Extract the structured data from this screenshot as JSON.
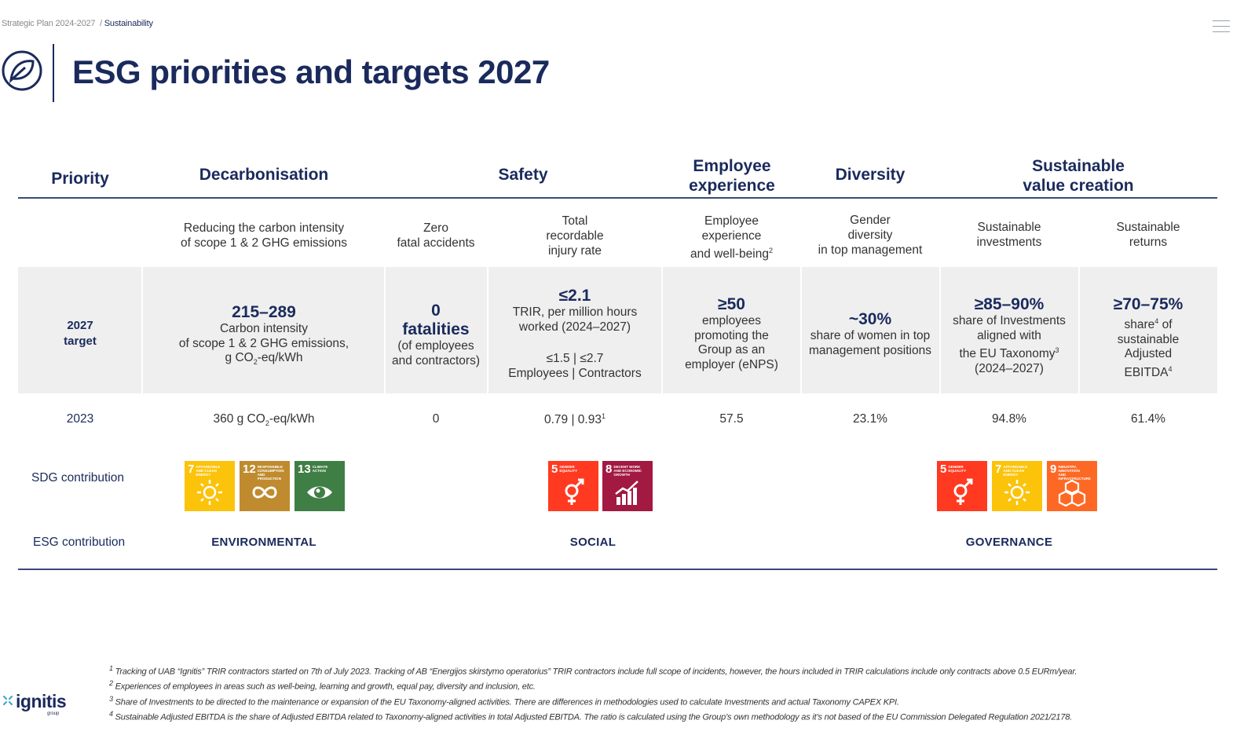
{
  "breadcrumb": {
    "parent": "Strategic Plan 2024-2027",
    "current": "Sustainability"
  },
  "title": "ESG priorities and targets 2027",
  "header": {
    "priority": "Priority",
    "decarbonisation": "Decarbonisation",
    "safety": "Safety",
    "employee_experience": [
      "Employee",
      "experience"
    ],
    "diversity": "Diversity",
    "sustainable_value": [
      "Sustainable",
      "value creation"
    ]
  },
  "subheaders": {
    "carbon": [
      "Reducing the carbon intensity",
      "of scope 1 & 2 GHG emissions"
    ],
    "zero": [
      "Zero",
      "fatal accidents"
    ],
    "trir": [
      "Total",
      "recordable",
      "injury rate"
    ],
    "employee": [
      "Employee",
      "experience",
      "and well-being"
    ],
    "employee_sup": "2",
    "gender": [
      "Gender",
      "diversity",
      "in top management"
    ],
    "investments": [
      "Sustainable",
      "investments"
    ],
    "returns": [
      "Sustainable",
      "returns"
    ]
  },
  "target_label": [
    "2027",
    "target"
  ],
  "targets": {
    "carbon": {
      "big": "215–289",
      "l1": "Carbon intensity",
      "l2": "of scope 1 & 2 GHG emissions,",
      "l3a": "g CO",
      "l3sub": "2",
      "l3b": "-eq/kWh"
    },
    "fatalities": {
      "big1": "0",
      "big2": "fatalities",
      "l1": "(of employees",
      "l2": "and contractors)"
    },
    "trir": {
      "big": "≤2.1",
      "l1": "TRIR, per million hours",
      "l2": "worked (2024–2027)",
      "l3": "≤1.5 | ≤2.7",
      "l4": "Employees | Contractors"
    },
    "enps": {
      "big": "≥50",
      "l1": "employees",
      "l2": "promoting the",
      "l3": "Group as an",
      "l4": "employer (eNPS)"
    },
    "women": {
      "big": "~30%",
      "l1": "share of women in top",
      "l2": "management positions"
    },
    "investments": {
      "big": "≥85–90%",
      "l1": "share of Investments",
      "l2": "aligned with",
      "l3a": "the EU Taxonomy",
      "l3sup": "3",
      "l4": "(2024–2027)"
    },
    "returns": {
      "big": "≥70–75%",
      "l1a": "share",
      "l1sup": "4",
      "l1b": " of",
      "l2": "sustainable",
      "l3": "Adjusted",
      "l4a": "EBITDA",
      "l4sup": "4"
    }
  },
  "year2023": {
    "label": "2023",
    "carbon_a": "360 g CO",
    "carbon_sub": "2",
    "carbon_b": "-eq/kWh",
    "fatal": "0",
    "trir": "0.79 | 0.93",
    "trir_sup": "1",
    "enps": "57.5",
    "women": "23.1%",
    "investments": "94.8%",
    "returns": "61.4%"
  },
  "sdg": {
    "label": "SDG contribution",
    "goals": [
      {
        "num": "7",
        "text": "Affordable and clean energy",
        "color": "#FCC30B",
        "icon": "sun-icon"
      },
      {
        "num": "12",
        "text": "Responsible consumption and production",
        "color": "#BF8B2E",
        "icon": "infinity-icon"
      },
      {
        "num": "13",
        "text": "Climate action",
        "color": "#3F7E44",
        "icon": "eye-globe-icon"
      },
      {
        "num": "5",
        "text": "Gender equality",
        "color": "#FF3A21",
        "icon": "gender-icon"
      },
      {
        "num": "8",
        "text": "Decent work and economic growth",
        "color": "#A21942",
        "icon": "growth-chart-icon"
      },
      {
        "num": "5",
        "text": "Gender equality",
        "color": "#FF3A21",
        "icon": "gender-icon"
      },
      {
        "num": "7",
        "text": "Affordable and clean energy",
        "color": "#FCC30B",
        "icon": "sun-icon"
      },
      {
        "num": "9",
        "text": "Industry, innovation and infrastructure",
        "color": "#FD6925",
        "icon": "cubes-icon"
      }
    ]
  },
  "esg": {
    "label": "ESG contribution",
    "environmental": "ENVIRONMENTAL",
    "social": "SOCIAL",
    "governance": "GOVERNANCE"
  },
  "footnotes": {
    "n1": "Tracking of UAB “Ignitis” TRIR contractors started on 7th of July 2023. Tracking of AB “Energijos skirstymo operatorius” TRIR contractors include full scope of incidents, however, the hours included in TRIR calculations include only contracts above 0.5 EURm/year.",
    "n2": "Experiences of employees in areas such as well-being, learning and growth, equal pay, diversity and inclusion, etc.",
    "n3": "Share of Investments to be directed to the maintenance or expansion of the EU Taxonomy-aligned activities. There are differences in methodologies used to calculate Investments and actual Taxonomy CAPEX KPI.",
    "n4": "Sustainable Adjusted EBITDA is the share of Adjusted EBITDA related to Taxonomy-aligned activities in total Adjusted EBITDA. The ratio is calculated using the Group’s own methodology as it’s not based of the EU Commission Delegated Regulation 2021/2178."
  },
  "logo": {
    "name": "ignitis",
    "sub": "group"
  },
  "colors": {
    "navy": "#1a2a5c",
    "band": "#efefef"
  }
}
